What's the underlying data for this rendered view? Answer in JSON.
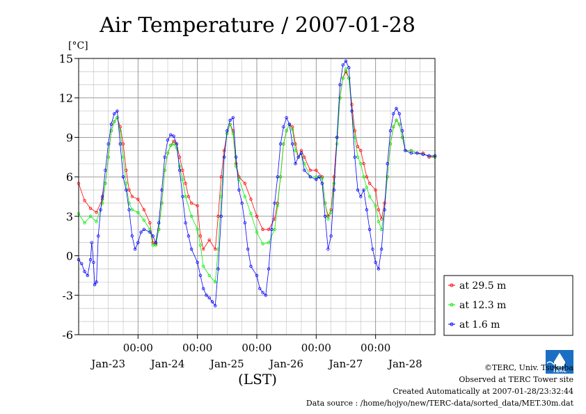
{
  "chart_data": {
    "type": "line",
    "title": "Air Temperature / 2007-01-28",
    "ylabel": "[°C]",
    "xlabel": "(LST)",
    "ylim": [
      -6,
      15
    ],
    "yticks": [
      -6,
      -3,
      0,
      3,
      6,
      9,
      12,
      15
    ],
    "xlim": [
      0,
      6
    ],
    "x_unit": "days since 2007-01-22 00:00 LST",
    "xticks": [
      1,
      2,
      3,
      4,
      5
    ],
    "xtick_labels": [
      "00:00",
      "00:00",
      "00:00",
      "00:00",
      "00:00"
    ],
    "date_labels": [
      "Jan-23",
      "Jan-24",
      "Jan-25",
      "Jan-26",
      "Jan-27",
      "Jan-28"
    ],
    "grid": true,
    "legend_position": "right",
    "series": [
      {
        "name": "at 29.5 m",
        "color": "#ff0000",
        "points": [
          [
            0,
            5.5
          ],
          [
            0.1,
            4.2
          ],
          [
            0.2,
            3.6
          ],
          [
            0.3,
            3.3
          ],
          [
            0.4,
            4.3
          ],
          [
            0.45,
            5.5
          ],
          [
            0.5,
            7.5
          ],
          [
            0.55,
            9.5
          ],
          [
            0.6,
            10.2
          ],
          [
            0.65,
            10.5
          ],
          [
            0.7,
            9.8
          ],
          [
            0.75,
            8.5
          ],
          [
            0.8,
            6.5
          ],
          [
            0.85,
            5.0
          ],
          [
            0.9,
            4.5
          ],
          [
            1.0,
            4.3
          ],
          [
            1.1,
            3.5
          ],
          [
            1.2,
            2.5
          ],
          [
            1.25,
            1.0
          ],
          [
            1.3,
            0.9
          ],
          [
            1.35,
            2.0
          ],
          [
            1.4,
            4.0
          ],
          [
            1.45,
            6.5
          ],
          [
            1.5,
            7.8
          ],
          [
            1.55,
            8.4
          ],
          [
            1.6,
            8.7
          ],
          [
            1.65,
            8.5
          ],
          [
            1.7,
            7.5
          ],
          [
            1.75,
            6.5
          ],
          [
            1.8,
            5.5
          ],
          [
            1.85,
            4.5
          ],
          [
            1.9,
            4.0
          ],
          [
            2.0,
            3.8
          ],
          [
            2.05,
            1.5
          ],
          [
            2.1,
            0.5
          ],
          [
            2.2,
            1.2
          ],
          [
            2.3,
            0.5
          ],
          [
            2.35,
            3.0
          ],
          [
            2.4,
            6.0
          ],
          [
            2.45,
            8.0
          ],
          [
            2.5,
            9.3
          ],
          [
            2.55,
            10.0
          ],
          [
            2.6,
            9.5
          ],
          [
            2.65,
            7.0
          ],
          [
            2.7,
            6.0
          ],
          [
            2.8,
            5.5
          ],
          [
            2.9,
            4.3
          ],
          [
            3.0,
            3.0
          ],
          [
            3.1,
            2.0
          ],
          [
            3.2,
            2.0
          ],
          [
            3.3,
            2.8
          ],
          [
            3.35,
            4.0
          ],
          [
            3.4,
            6.0
          ],
          [
            3.45,
            8.5
          ],
          [
            3.5,
            9.5
          ],
          [
            3.55,
            10.0
          ],
          [
            3.6,
            9.8
          ],
          [
            3.65,
            8.5
          ],
          [
            3.7,
            7.5
          ],
          [
            3.75,
            8.0
          ],
          [
            3.8,
            7.5
          ],
          [
            3.9,
            6.5
          ],
          [
            4.0,
            6.5
          ],
          [
            4.1,
            6.0
          ],
          [
            4.15,
            4.0
          ],
          [
            4.2,
            3.0
          ],
          [
            4.25,
            3.5
          ],
          [
            4.3,
            6.0
          ],
          [
            4.35,
            9.0
          ],
          [
            4.4,
            12.0
          ],
          [
            4.45,
            13.5
          ],
          [
            4.5,
            14.0
          ],
          [
            4.55,
            13.5
          ],
          [
            4.6,
            11.5
          ],
          [
            4.65,
            9.5
          ],
          [
            4.7,
            8.3
          ],
          [
            4.75,
            8.0
          ],
          [
            4.8,
            7.0
          ],
          [
            4.85,
            6.0
          ],
          [
            4.9,
            5.5
          ],
          [
            5.0,
            5.0
          ],
          [
            5.05,
            3.5
          ],
          [
            5.1,
            2.8
          ],
          [
            5.15,
            4.0
          ],
          [
            5.2,
            6.0
          ],
          [
            5.25,
            8.5
          ],
          [
            5.3,
            9.8
          ],
          [
            5.35,
            10.3
          ],
          [
            5.4,
            10.0
          ],
          [
            5.45,
            9.0
          ],
          [
            5.5,
            8.0
          ],
          [
            5.6,
            8.0
          ],
          [
            5.7,
            7.8
          ],
          [
            5.8,
            7.8
          ],
          [
            5.9,
            7.5
          ],
          [
            6.0,
            7.5
          ]
        ]
      },
      {
        "name": "at 12.3 m",
        "color": "#00ee00",
        "points": [
          [
            0,
            3.2
          ],
          [
            0.1,
            2.5
          ],
          [
            0.2,
            3.0
          ],
          [
            0.3,
            2.6
          ],
          [
            0.4,
            4.0
          ],
          [
            0.45,
            5.5
          ],
          [
            0.5,
            7.5
          ],
          [
            0.55,
            9.5
          ],
          [
            0.6,
            10.2
          ],
          [
            0.65,
            10.5
          ],
          [
            0.7,
            9.5
          ],
          [
            0.75,
            7.5
          ],
          [
            0.8,
            5.5
          ],
          [
            0.85,
            4.0
          ],
          [
            0.9,
            3.5
          ],
          [
            1.0,
            3.3
          ],
          [
            1.1,
            2.7
          ],
          [
            1.2,
            2.0
          ],
          [
            1.25,
            0.8
          ],
          [
            1.3,
            0.8
          ],
          [
            1.35,
            2.0
          ],
          [
            1.4,
            4.0
          ],
          [
            1.45,
            6.5
          ],
          [
            1.5,
            7.8
          ],
          [
            1.55,
            8.4
          ],
          [
            1.6,
            8.5
          ],
          [
            1.65,
            8.2
          ],
          [
            1.7,
            6.8
          ],
          [
            1.75,
            5.8
          ],
          [
            1.8,
            4.5
          ],
          [
            1.9,
            3.0
          ],
          [
            2.0,
            2.0
          ],
          [
            2.05,
            0.8
          ],
          [
            2.1,
            -0.8
          ],
          [
            2.2,
            -1.5
          ],
          [
            2.3,
            -2.0
          ],
          [
            2.35,
            0.5
          ],
          [
            2.4,
            4.5
          ],
          [
            2.45,
            7.5
          ],
          [
            2.5,
            9.3
          ],
          [
            2.55,
            10.0
          ],
          [
            2.6,
            9.3
          ],
          [
            2.65,
            6.8
          ],
          [
            2.7,
            5.8
          ],
          [
            2.8,
            4.5
          ],
          [
            2.9,
            3.2
          ],
          [
            3.0,
            1.8
          ],
          [
            3.1,
            0.9
          ],
          [
            3.2,
            1.0
          ],
          [
            3.3,
            2.0
          ],
          [
            3.35,
            3.8
          ],
          [
            3.4,
            6.0
          ],
          [
            3.45,
            8.5
          ],
          [
            3.5,
            9.5
          ],
          [
            3.55,
            10.0
          ],
          [
            3.6,
            9.6
          ],
          [
            3.65,
            8.0
          ],
          [
            3.7,
            7.5
          ],
          [
            3.75,
            7.8
          ],
          [
            3.8,
            7.0
          ],
          [
            3.9,
            6.0
          ],
          [
            4.0,
            6.0
          ],
          [
            4.1,
            5.9
          ],
          [
            4.15,
            4.0
          ],
          [
            4.2,
            2.8
          ],
          [
            4.25,
            3.3
          ],
          [
            4.3,
            5.5
          ],
          [
            4.35,
            8.5
          ],
          [
            4.4,
            12.0
          ],
          [
            4.45,
            13.5
          ],
          [
            4.5,
            14.2
          ],
          [
            4.55,
            13.5
          ],
          [
            4.6,
            11.0
          ],
          [
            4.65,
            9.0
          ],
          [
            4.7,
            7.5
          ],
          [
            4.75,
            7.0
          ],
          [
            4.8,
            6.0
          ],
          [
            4.85,
            5.2
          ],
          [
            4.9,
            4.5
          ],
          [
            5.0,
            3.8
          ],
          [
            5.05,
            2.6
          ],
          [
            5.1,
            2.0
          ],
          [
            5.15,
            3.5
          ],
          [
            5.2,
            6.0
          ],
          [
            5.25,
            8.5
          ],
          [
            5.3,
            9.8
          ],
          [
            5.35,
            10.3
          ],
          [
            5.4,
            10.0
          ],
          [
            5.45,
            9.0
          ],
          [
            5.5,
            8.0
          ],
          [
            5.6,
            8.0
          ],
          [
            5.7,
            7.8
          ],
          [
            5.8,
            7.7
          ],
          [
            5.9,
            7.6
          ],
          [
            6.0,
            7.5
          ]
        ]
      },
      {
        "name": "at 1.6 m",
        "color": "#0000ff",
        "points": [
          [
            0,
            -0.3
          ],
          [
            0.05,
            -0.6
          ],
          [
            0.1,
            -1.2
          ],
          [
            0.15,
            -1.5
          ],
          [
            0.2,
            -0.3
          ],
          [
            0.22,
            1.0
          ],
          [
            0.25,
            -0.5
          ],
          [
            0.27,
            -2.2
          ],
          [
            0.3,
            -2.0
          ],
          [
            0.33,
            1.5
          ],
          [
            0.37,
            3.5
          ],
          [
            0.4,
            4.5
          ],
          [
            0.45,
            6.5
          ],
          [
            0.5,
            8.5
          ],
          [
            0.55,
            10.0
          ],
          [
            0.6,
            10.8
          ],
          [
            0.65,
            11.0
          ],
          [
            0.7,
            8.5
          ],
          [
            0.75,
            6.0
          ],
          [
            0.8,
            5.0
          ],
          [
            0.85,
            3.5
          ],
          [
            0.9,
            1.5
          ],
          [
            0.95,
            0.5
          ],
          [
            1.0,
            1.0
          ],
          [
            1.05,
            1.8
          ],
          [
            1.1,
            2.0
          ],
          [
            1.2,
            1.8
          ],
          [
            1.25,
            1.5
          ],
          [
            1.3,
            1.0
          ],
          [
            1.35,
            2.5
          ],
          [
            1.4,
            5.0
          ],
          [
            1.45,
            7.5
          ],
          [
            1.5,
            8.8
          ],
          [
            1.55,
            9.2
          ],
          [
            1.6,
            9.1
          ],
          [
            1.65,
            8.5
          ],
          [
            1.7,
            6.5
          ],
          [
            1.75,
            4.5
          ],
          [
            1.8,
            2.5
          ],
          [
            1.85,
            1.5
          ],
          [
            1.9,
            0.5
          ],
          [
            2.0,
            -0.5
          ],
          [
            2.05,
            -1.5
          ],
          [
            2.1,
            -2.5
          ],
          [
            2.15,
            -3.0
          ],
          [
            2.2,
            -3.2
          ],
          [
            2.25,
            -3.5
          ],
          [
            2.3,
            -3.8
          ],
          [
            2.35,
            -1.0
          ],
          [
            2.4,
            3.0
          ],
          [
            2.45,
            7.5
          ],
          [
            2.5,
            9.5
          ],
          [
            2.55,
            10.3
          ],
          [
            2.6,
            10.5
          ],
          [
            2.65,
            7.5
          ],
          [
            2.7,
            5.0
          ],
          [
            2.75,
            4.0
          ],
          [
            2.8,
            2.5
          ],
          [
            2.85,
            0.5
          ],
          [
            2.9,
            -0.8
          ],
          [
            3.0,
            -1.5
          ],
          [
            3.05,
            -2.5
          ],
          [
            3.1,
            -2.8
          ],
          [
            3.15,
            -3.0
          ],
          [
            3.2,
            -1.0
          ],
          [
            3.25,
            2.0
          ],
          [
            3.3,
            4.0
          ],
          [
            3.35,
            6.0
          ],
          [
            3.4,
            8.5
          ],
          [
            3.45,
            9.8
          ],
          [
            3.5,
            10.5
          ],
          [
            3.55,
            10.0
          ],
          [
            3.6,
            8.5
          ],
          [
            3.65,
            7.0
          ],
          [
            3.7,
            7.5
          ],
          [
            3.75,
            7.8
          ],
          [
            3.8,
            6.5
          ],
          [
            3.9,
            6.0
          ],
          [
            4.0,
            5.8
          ],
          [
            4.05,
            6.0
          ],
          [
            4.1,
            5.5
          ],
          [
            4.15,
            3.0
          ],
          [
            4.2,
            0.5
          ],
          [
            4.25,
            1.5
          ],
          [
            4.3,
            5.0
          ],
          [
            4.35,
            9.0
          ],
          [
            4.4,
            13.0
          ],
          [
            4.45,
            14.5
          ],
          [
            4.5,
            14.8
          ],
          [
            4.55,
            14.3
          ],
          [
            4.6,
            11.0
          ],
          [
            4.65,
            7.5
          ],
          [
            4.7,
            5.0
          ],
          [
            4.75,
            4.5
          ],
          [
            4.8,
            5.0
          ],
          [
            4.85,
            3.5
          ],
          [
            4.9,
            2.0
          ],
          [
            4.95,
            0.5
          ],
          [
            5.0,
            -0.5
          ],
          [
            5.05,
            -1.0
          ],
          [
            5.1,
            0.5
          ],
          [
            5.15,
            3.5
          ],
          [
            5.2,
            7.0
          ],
          [
            5.25,
            9.5
          ],
          [
            5.3,
            10.8
          ],
          [
            5.35,
            11.2
          ],
          [
            5.4,
            10.8
          ],
          [
            5.45,
            9.5
          ],
          [
            5.5,
            8.0
          ],
          [
            5.6,
            7.8
          ],
          [
            5.7,
            7.8
          ],
          [
            5.8,
            7.7
          ],
          [
            5.9,
            7.6
          ],
          [
            6.0,
            7.6
          ]
        ]
      }
    ]
  },
  "credits": {
    "copyright": "©TERC, Univ. Tsukuba",
    "site": "Observed at TERC Tower site",
    "created": "Created Automatically at 2007-01-28/23:32:44",
    "source": "Data source : /home/hojyo/new/TERC-data/sorted_data/MET.30m.dat",
    "logo_text": "TERC",
    "logo_color": "#1a6fc4"
  }
}
